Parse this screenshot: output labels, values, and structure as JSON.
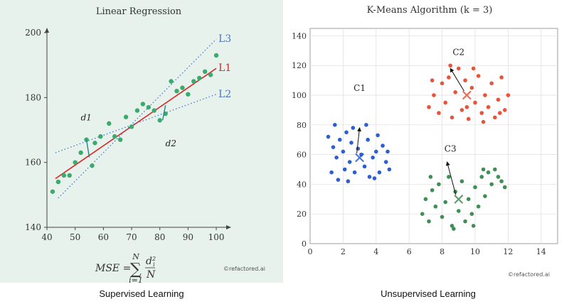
{
  "chart_data": [
    {
      "type": "scatter",
      "title": "Linear Regression",
      "xlim": [
        40,
        102
      ],
      "ylim": [
        140,
        200
      ],
      "x_ticks": [
        40,
        50,
        60,
        70,
        80,
        90,
        100
      ],
      "y_ticks": [
        140,
        160,
        180,
        200
      ],
      "points": [
        [
          42,
          151
        ],
        [
          44,
          154
        ],
        [
          46,
          156
        ],
        [
          48,
          156
        ],
        [
          50,
          160
        ],
        [
          52,
          163
        ],
        [
          54,
          167
        ],
        [
          56,
          159
        ],
        [
          57,
          166
        ],
        [
          59,
          168
        ],
        [
          62,
          172
        ],
        [
          64,
          168
        ],
        [
          66,
          167
        ],
        [
          68,
          174
        ],
        [
          70,
          171
        ],
        [
          72,
          176
        ],
        [
          74,
          178
        ],
        [
          76,
          177
        ],
        [
          78,
          176
        ],
        [
          80,
          173
        ],
        [
          82,
          175
        ],
        [
          84,
          185
        ],
        [
          86,
          182
        ],
        [
          88,
          183
        ],
        [
          90,
          181
        ],
        [
          92,
          185
        ],
        [
          94,
          186
        ],
        [
          96,
          188
        ],
        [
          98,
          187
        ],
        [
          100,
          193
        ]
      ],
      "lines": [
        {
          "name": "L1",
          "color": "#dd2222",
          "style": "solid",
          "from": [
            43,
            155
          ],
          "to": [
            100,
            189
          ]
        },
        {
          "name": "L2",
          "color": "#4477cc",
          "style": "dotted",
          "from": [
            43,
            163
          ],
          "to": [
            100,
            181
          ]
        },
        {
          "name": "L3",
          "color": "#4477cc",
          "style": "dotted",
          "from": [
            44,
            149
          ],
          "to": [
            100,
            198
          ]
        }
      ],
      "residuals": [
        {
          "label": "d1",
          "x": 54,
          "y_point": 167,
          "y_line": 161.6,
          "label_pos": [
            52,
            173
          ]
        },
        {
          "label": "d2",
          "x": 81,
          "y_point": 173,
          "y_line": 177.6,
          "label_pos": [
            82,
            165
          ]
        }
      ],
      "formula": {
        "lhs": "MSE =",
        "sum_top": "N",
        "sum_bottom": "i=1",
        "num": "d",
        "num_sup": "2",
        "num_sub": "i",
        "den": "N"
      },
      "watermark": "©refactored.ai",
      "color": "#3aaa6e"
    },
    {
      "type": "scatter",
      "title": "K-Means Algorithm (k = 3)",
      "xlim": [
        0,
        15
      ],
      "ylim": [
        0,
        145
      ],
      "x_ticks": [
        0,
        2,
        4,
        6,
        8,
        10,
        12,
        14
      ],
      "y_ticks": [
        0,
        20,
        40,
        60,
        80,
        100,
        120,
        140
      ],
      "clusters": [
        {
          "name": "C1",
          "color": "#2e5fd0",
          "centroid": [
            3,
            58
          ],
          "label_pos": [
            3,
            103
          ],
          "arrow_tip": [
            3,
            78
          ],
          "points": [
            [
              1.1,
              72
            ],
            [
              1.4,
              65
            ],
            [
              1.6,
              58
            ],
            [
              1.8,
              70
            ],
            [
              2.0,
              62
            ],
            [
              2.2,
              75
            ],
            [
              2.4,
              55
            ],
            [
              2.5,
              68
            ],
            [
              2.7,
              48
            ],
            [
              2.9,
              64
            ],
            [
              3.1,
              60
            ],
            [
              3.3,
              52
            ],
            [
              3.5,
              70
            ],
            [
              3.6,
              45
            ],
            [
              3.8,
              58
            ],
            [
              4.0,
              62
            ],
            [
              4.2,
              48
            ],
            [
              4.4,
              66
            ],
            [
              4.6,
              55
            ],
            [
              4.8,
              50
            ],
            [
              1.3,
              48
            ],
            [
              1.7,
              43
            ],
            [
              2.1,
              50
            ],
            [
              2.6,
              78
            ],
            [
              3.4,
              80
            ],
            [
              4.1,
              73
            ],
            [
              4.7,
              62
            ],
            [
              1.5,
              80
            ],
            [
              2.3,
              42
            ],
            [
              3.9,
              44
            ]
          ]
        },
        {
          "name": "C2",
          "color": "#e8533a",
          "centroid": [
            9.5,
            100
          ],
          "label_pos": [
            9.0,
            127
          ],
          "arrow_tip": [
            8.5,
            118
          ],
          "points": [
            [
              7.2,
              92
            ],
            [
              7.5,
              100
            ],
            [
              7.8,
              88
            ],
            [
              8.0,
              108
            ],
            [
              8.2,
              95
            ],
            [
              8.4,
              112
            ],
            [
              8.6,
              85
            ],
            [
              8.8,
              102
            ],
            [
              9.0,
              118
            ],
            [
              9.2,
              90
            ],
            [
              9.4,
              110
            ],
            [
              9.6,
              84
            ],
            [
              9.8,
              105
            ],
            [
              10.0,
              95
            ],
            [
              10.2,
              113
            ],
            [
              10.4,
              88
            ],
            [
              10.6,
              100
            ],
            [
              10.8,
              92
            ],
            [
              11.0,
              108
            ],
            [
              11.2,
              85
            ],
            [
              11.4,
              97
            ],
            [
              11.6,
              112
            ],
            [
              11.8,
              90
            ],
            [
              12.0,
              100
            ],
            [
              7.4,
              110
            ],
            [
              8.5,
              120
            ],
            [
              9.5,
              92
            ],
            [
              10.5,
              82
            ],
            [
              11.5,
              88
            ],
            [
              9.9,
              118
            ]
          ]
        },
        {
          "name": "C3",
          "color": "#3e8f55",
          "centroid": [
            9,
            30
          ],
          "label_pos": [
            8.5,
            62
          ],
          "arrow_tip": [
            8.3,
            55
          ],
          "points": [
            [
              6.8,
              20
            ],
            [
              7.0,
              30
            ],
            [
              7.2,
              15
            ],
            [
              7.4,
              36
            ],
            [
              7.6,
              25
            ],
            [
              7.8,
              40
            ],
            [
              8.0,
              18
            ],
            [
              8.2,
              28
            ],
            [
              8.4,
              45
            ],
            [
              8.6,
              12
            ],
            [
              8.8,
              35
            ],
            [
              9.0,
              22
            ],
            [
              9.2,
              42
            ],
            [
              9.4,
              15
            ],
            [
              9.6,
              30
            ],
            [
              9.8,
              20
            ],
            [
              10.0,
              38
            ],
            [
              10.2,
              25
            ],
            [
              10.4,
              45
            ],
            [
              10.6,
              32
            ],
            [
              10.8,
              48
            ],
            [
              11.0,
              40
            ],
            [
              11.2,
              50
            ],
            [
              11.4,
              45
            ],
            [
              11.6,
              42
            ],
            [
              11.8,
              38
            ],
            [
              7.3,
              45
            ],
            [
              8.7,
              10
            ],
            [
              9.9,
              12
            ],
            [
              10.5,
              50
            ]
          ]
        }
      ],
      "watermark": "©refactored.ai"
    }
  ],
  "captions": {
    "left": "Supervised Learning",
    "right": "Unsupervised Learning"
  }
}
